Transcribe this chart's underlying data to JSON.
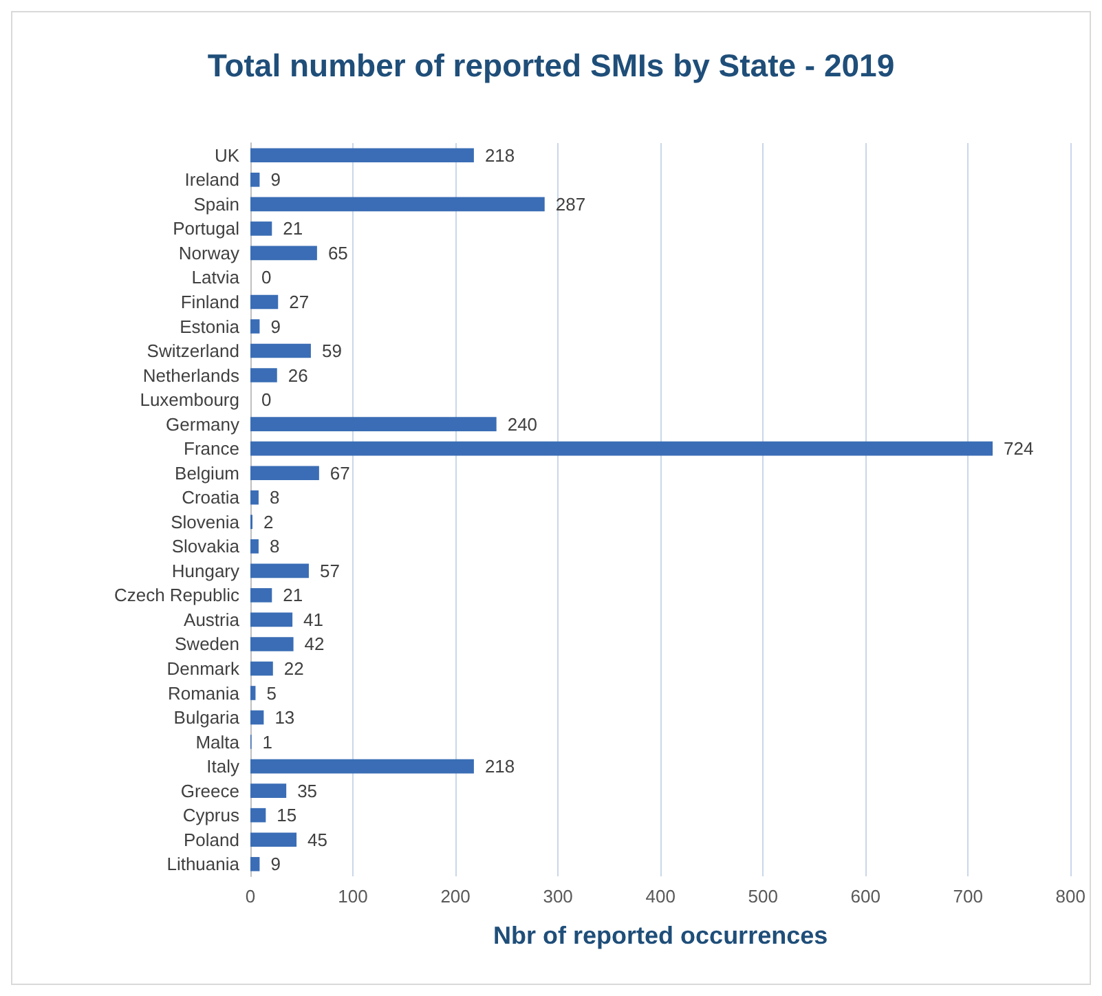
{
  "chart_data": {
    "type": "bar",
    "orientation": "horizontal",
    "title": "Total number of reported SMIs by State - 2019",
    "xlabel": "Nbr of reported occurrences",
    "categories": [
      "UK",
      "Ireland",
      "Spain",
      "Portugal",
      "Norway",
      "Latvia",
      "Finland",
      "Estonia",
      "Switzerland",
      "Netherlands",
      "Luxembourg",
      "Germany",
      "France",
      "Belgium",
      "Croatia",
      "Slovenia",
      "Slovakia",
      "Hungary",
      "Czech Republic",
      "Austria",
      "Sweden",
      "Denmark",
      "Romania",
      "Bulgaria",
      "Malta",
      "Italy",
      "Greece",
      "Cyprus",
      "Poland",
      "Lithuania"
    ],
    "values": [
      218,
      9,
      287,
      21,
      65,
      0,
      27,
      9,
      59,
      26,
      0,
      240,
      724,
      67,
      8,
      2,
      8,
      57,
      21,
      41,
      42,
      22,
      5,
      13,
      1,
      218,
      35,
      15,
      45,
      9
    ],
    "color": "#3a6db5",
    "xlim": [
      0,
      800
    ],
    "xticks": [
      0,
      100,
      200,
      300,
      400,
      500,
      600,
      700,
      800
    ],
    "grid": "x",
    "data_labels": true
  }
}
